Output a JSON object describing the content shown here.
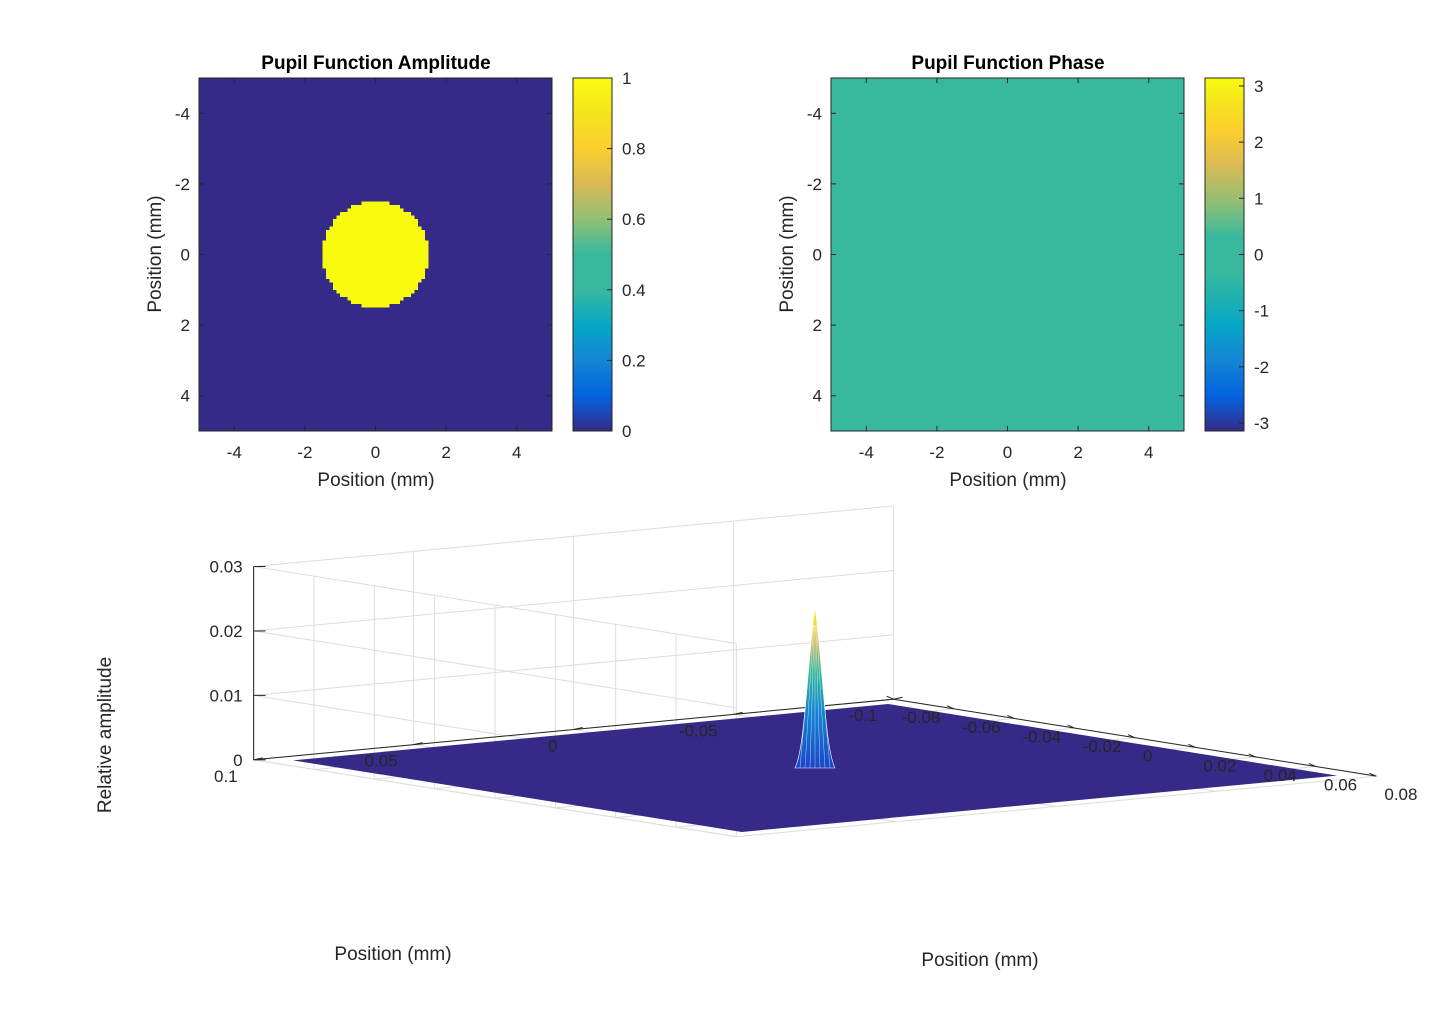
{
  "colors": {
    "parula_low": "#352a87",
    "parula_mid": "#38b99e",
    "parula_high": "#f9fb0e",
    "axis": "#262626",
    "grid": "#dddddd"
  },
  "chart_data": [
    {
      "type": "heatmap",
      "title": "Pupil Function Amplitude",
      "xlabel": "Position (mm)",
      "ylabel": "Position (mm)",
      "xlim": [
        -5,
        5
      ],
      "ylim": [
        -5,
        5
      ],
      "y_direction": "reversed",
      "xticks": [
        -4,
        -2,
        0,
        2,
        4
      ],
      "yticks": [
        -4,
        -2,
        0,
        2,
        4
      ],
      "xtick_labels": [
        "-4",
        "-2",
        "0",
        "2",
        "4"
      ],
      "ytick_labels": [
        "-4",
        "-2",
        "0",
        "2",
        "4"
      ],
      "aperture": {
        "shape": "circle",
        "center": [
          0,
          0
        ],
        "radius": 1.5,
        "value_inside": 1,
        "value_outside": 0
      },
      "colorbar": {
        "clim": [
          0,
          1
        ],
        "ticks": [
          0,
          0.2,
          0.4,
          0.6,
          0.8,
          1
        ],
        "tick_labels": [
          "0",
          "0.2",
          "0.4",
          "0.6",
          "0.8",
          "1"
        ]
      }
    },
    {
      "type": "heatmap",
      "title": "Pupil Function Phase",
      "xlabel": "Position (mm)",
      "ylabel": "Position (mm)",
      "xlim": [
        -5,
        5
      ],
      "ylim": [
        -5,
        5
      ],
      "y_direction": "reversed",
      "xticks": [
        -4,
        -2,
        0,
        2,
        4
      ],
      "yticks": [
        -4,
        -2,
        0,
        2,
        4
      ],
      "xtick_labels": [
        "-4",
        "-2",
        "0",
        "2",
        "4"
      ],
      "ytick_labels": [
        "-4",
        "-2",
        "0",
        "2",
        "4"
      ],
      "uniform_value": 0,
      "colorbar": {
        "clim": [
          -3.1416,
          3.1416
        ],
        "ticks": [
          -3,
          -2,
          -1,
          0,
          1,
          2,
          3
        ],
        "tick_labels": [
          "-3",
          "-2",
          "-1",
          "0",
          "1",
          "2",
          "3"
        ]
      }
    },
    {
      "type": "surface",
      "xlabel": "Position (mm)",
      "ylabel": "Position (mm)",
      "zlabel": "Relative amplitude",
      "xlim": [
        -0.08,
        0.08
      ],
      "ylim": [
        -0.1,
        0.1
      ],
      "zlim": [
        0,
        0.03
      ],
      "xticks": [
        -0.08,
        -0.06,
        -0.04,
        -0.02,
        0,
        0.02,
        0.04,
        0.06,
        0.08
      ],
      "xtick_labels": [
        "-0.08",
        "-0.06",
        "-0.04",
        "-0.02",
        "0",
        "0.02",
        "0.04",
        "0.06",
        "0.08"
      ],
      "yticks": [
        -0.1,
        -0.05,
        0,
        0.05,
        0.1
      ],
      "ytick_labels": [
        "-0.1",
        "-0.05",
        "0",
        "0.05",
        "0.1"
      ],
      "zticks": [
        0,
        0.01,
        0.02,
        0.03
      ],
      "ztick_labels": [
        "0",
        "0.01",
        "0.02",
        "0.03"
      ],
      "peak": {
        "x": 0,
        "y": 0,
        "z": 0.025
      }
    }
  ]
}
